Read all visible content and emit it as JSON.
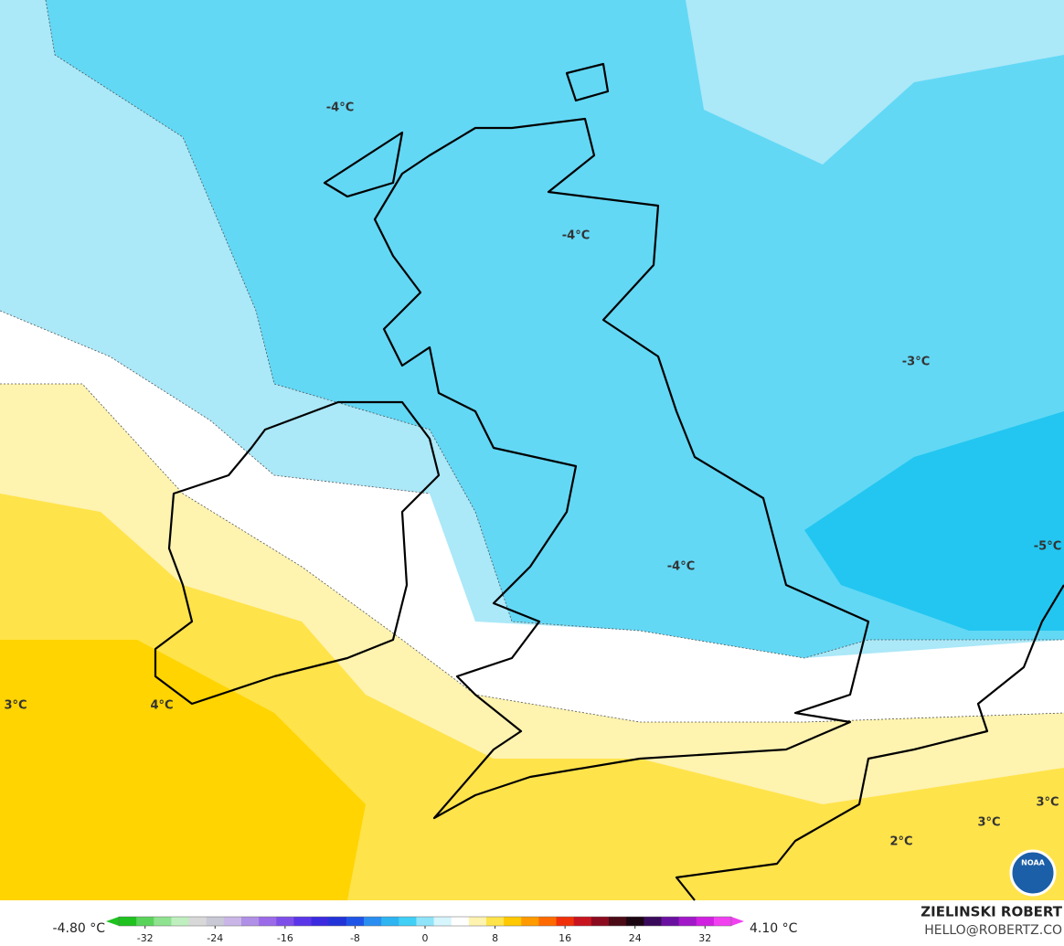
{
  "map": {
    "labels": [
      "-4°C",
      "-4°C",
      "-3°C",
      "-4°C",
      "-5°C",
      "3°C",
      "4°C",
      "2°C",
      "3°C",
      "3°C"
    ],
    "logo": "NOAA"
  },
  "colorbar": {
    "min_label": "-4.80 °C",
    "max_label": "4.10 °C",
    "lim": [
      -35,
      35
    ],
    "ticks": [
      -32,
      -24,
      -16,
      -8,
      0,
      8,
      16,
      24,
      32
    ],
    "colors": [
      "#1fc21f",
      "#5ad35a",
      "#8fe28f",
      "#bfeebf",
      "#d8d8d8",
      "#c9c9d6",
      "#c9b6e6",
      "#b08fe6",
      "#9a6ae8",
      "#7e4fe8",
      "#5a36e8",
      "#3b2ae0",
      "#2233d8",
      "#1f55e6",
      "#2a8df0",
      "#2fb4f2",
      "#40cff5",
      "#8fe4f9",
      "#d6f5fc",
      "#ffffff",
      "#fff3b0",
      "#ffe34a",
      "#ffc800",
      "#ff9a00",
      "#ff6a00",
      "#f0300a",
      "#c8141e",
      "#8c0a1e",
      "#4a0a16",
      "#1a0510",
      "#3a0a5a",
      "#6a10a0",
      "#a018c8",
      "#d020e0",
      "#f040f0"
    ]
  },
  "credit": {
    "name": "ZIELINSKI ROBERT",
    "contact": "HELLO@ROBERTZ.CO"
  }
}
